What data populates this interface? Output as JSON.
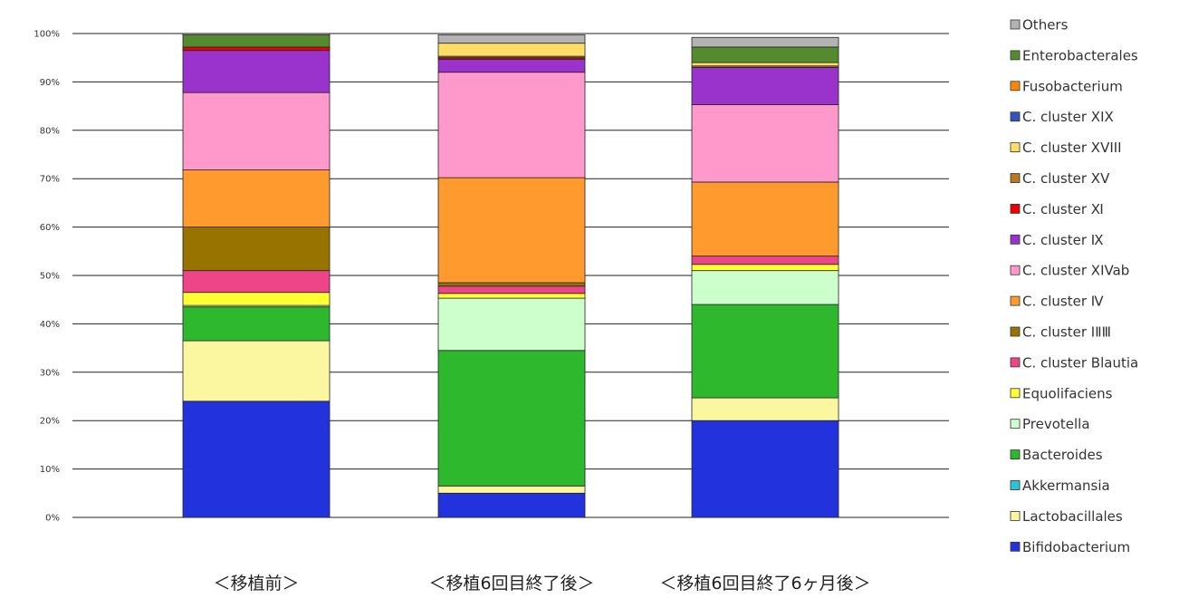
{
  "chart_data": {
    "type": "bar",
    "stacked": true,
    "title": "",
    "xlabel": "",
    "ylabel": "",
    "ylim": [
      0,
      100
    ],
    "yticks": [
      "0%",
      "10%",
      "20%",
      "30%",
      "40%",
      "50%",
      "60%",
      "70%",
      "80%",
      "90%",
      "100%"
    ],
    "grid": true,
    "legend_position": "right",
    "categories": [
      "＜移植前＞",
      "＜移植6回目終了後＞",
      "＜移植6回目終了6ヶ月後＞"
    ],
    "series": [
      {
        "name": "Bifidobacterium",
        "color": "#2233dd",
        "values": [
          24,
          5,
          20
        ]
      },
      {
        "name": "Lactobacillales",
        "color": "#fbf7a0",
        "values": [
          12.5,
          1.5,
          4.7
        ]
      },
      {
        "name": "Akkermansia",
        "color": "#2ec4d8",
        "values": [
          0,
          0,
          0
        ]
      },
      {
        "name": "Bacteroides",
        "color": "#2eb82e",
        "values": [
          7,
          28,
          19.3
        ]
      },
      {
        "name": "Prevotella",
        "color": "#ccffcc",
        "values": [
          0.3,
          10.8,
          7
        ]
      },
      {
        "name": "Equolifaciens",
        "color": "#ffff33",
        "values": [
          2.7,
          1,
          1.3
        ]
      },
      {
        "name": "C. cluster Blautia",
        "color": "#ee4488",
        "values": [
          4.5,
          1.5,
          1.7
        ]
      },
      {
        "name": "C. cluster ⅠⅡⅢ",
        "color": "#997300",
        "values": [
          9,
          0.7,
          0
        ]
      },
      {
        "name": "C. cluster Ⅳ",
        "color": "#ff9a2e",
        "values": [
          11.8,
          21.7,
          15.3
        ]
      },
      {
        "name": "C. cluster XIVab",
        "color": "#ff99cc",
        "values": [
          16,
          21.8,
          16
        ]
      },
      {
        "name": "C. cluster Ⅸ",
        "color": "#9933cc",
        "values": [
          8.7,
          2.7,
          7.7
        ]
      },
      {
        "name": "C. cluster Ⅺ",
        "color": "#ee0000",
        "values": [
          0.7,
          0.3,
          0
        ]
      },
      {
        "name": "C. cluster XV",
        "color": "#bb7722",
        "values": [
          0,
          0.3,
          0.3
        ]
      },
      {
        "name": "C. cluster XVIII",
        "color": "#ffdd66",
        "values": [
          0,
          2.7,
          0.7
        ]
      },
      {
        "name": "C. cluster XIX",
        "color": "#3355bb",
        "values": [
          0,
          0,
          0
        ]
      },
      {
        "name": "Fusobacterium",
        "color": "#ff8800",
        "values": [
          0,
          0,
          0
        ]
      },
      {
        "name": "Enterobacterales",
        "color": "#558b2f",
        "values": [
          2.5,
          0,
          3.2
        ]
      },
      {
        "name": "Others",
        "color": "#b3b3b3",
        "values": [
          0.3,
          1.7,
          2
        ]
      }
    ],
    "legend_order": [
      "Others",
      "Enterobacterales",
      "Fusobacterium",
      "C. cluster XIX",
      "C. cluster XVIII",
      "C. cluster XV",
      "C. cluster Ⅺ",
      "C. cluster Ⅸ",
      "C. cluster XIVab",
      "C. cluster Ⅳ",
      "C. cluster ⅠⅡⅢ",
      "C. cluster Blautia",
      "Equolifaciens",
      "Prevotella",
      "Bacteroides",
      "Akkermansia",
      "Lactobacillales",
      "Bifidobacterium"
    ]
  }
}
